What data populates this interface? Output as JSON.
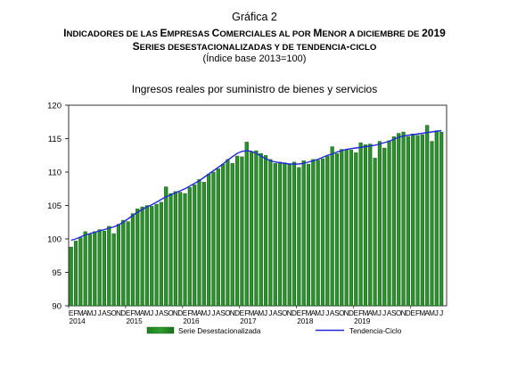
{
  "header": {
    "chart_number": "Gráfica 2",
    "title_parts": [
      {
        "t": "I",
        "s": false
      },
      {
        "t": "NDICADORES DE LAS ",
        "s": true
      },
      {
        "t": "E",
        "s": false
      },
      {
        "t": "MPRESAS ",
        "s": true
      },
      {
        "t": "C",
        "s": false
      },
      {
        "t": "OMERCIALES AL POR ",
        "s": true
      },
      {
        "t": "M",
        "s": false
      },
      {
        "t": "ENOR A DICIEMBRE DE ",
        "s": true
      },
      {
        "t": "2019",
        "s": false
      }
    ],
    "subtitle_parts": [
      {
        "t": "S",
        "s": false
      },
      {
        "t": "ERIES DESESTACIONALIZADAS Y DE TENDENCIA",
        "s": true
      },
      {
        "t": "-",
        "s": false
      },
      {
        "t": "CICLO",
        "s": true
      }
    ],
    "index_note": "(Índice base 2013=100)"
  },
  "chart_data": {
    "type": "bar",
    "title": "Ingresos reales por suministro de bienes y servicios",
    "xlabel": "",
    "ylabel": "",
    "ylim": [
      90,
      120
    ],
    "yticks": [
      90,
      95,
      100,
      105,
      110,
      115,
      120
    ],
    "month_labels": [
      "E",
      "F",
      "M",
      "A",
      "M",
      "J",
      "J",
      "A",
      "S",
      "O",
      "N",
      "D"
    ],
    "years": [
      "2014",
      "2015",
      "2016",
      "2017",
      "2018",
      "2019"
    ],
    "grid": false,
    "legend_position": "bottom",
    "bar_color": "#2e9e2e",
    "line_color": "#1f2bd6",
    "series": [
      {
        "name": "Serie Desestacionalizada",
        "type": "bar",
        "values": [
          98.8,
          99.7,
          100.2,
          101.1,
          100.7,
          101.1,
          101.4,
          101.2,
          101.9,
          100.8,
          102.2,
          102.8,
          102.6,
          103.8,
          104.5,
          104.8,
          105.0,
          104.9,
          105.2,
          105.5,
          107.8,
          106.8,
          107.1,
          107.0,
          106.8,
          107.7,
          108.1,
          108.9,
          108.5,
          109.7,
          110.0,
          110.5,
          111.2,
          111.9,
          111.3,
          112.4,
          112.3,
          114.5,
          113.0,
          113.2,
          112.8,
          112.5,
          111.9,
          111.3,
          111.5,
          111.4,
          111.1,
          111.5,
          110.7,
          111.7,
          111.2,
          111.9,
          111.8,
          112.0,
          112.4,
          113.8,
          112.8,
          113.4,
          113.3,
          113.3,
          112.9,
          114.4,
          114.1,
          114.2,
          112.1,
          114.6,
          113.6,
          114.7,
          115.3,
          115.8,
          116.0,
          115.3,
          115.7,
          115.5,
          115.6,
          117.0,
          114.6,
          116.2,
          116.0
        ]
      },
      {
        "name": "Tendencia-Ciclo",
        "type": "line",
        "values": [
          99.8,
          100.0,
          100.3,
          100.6,
          100.8,
          101.0,
          101.2,
          101.4,
          101.6,
          101.8,
          102.1,
          102.5,
          103.0,
          103.5,
          104.0,
          104.4,
          104.8,
          105.1,
          105.5,
          105.9,
          106.3,
          106.6,
          106.9,
          107.2,
          107.5,
          107.9,
          108.3,
          108.7,
          109.2,
          109.7,
          110.2,
          110.7,
          111.2,
          111.8,
          112.3,
          112.8,
          113.1,
          113.2,
          113.1,
          112.8,
          112.4,
          112.0,
          111.7,
          111.5,
          111.4,
          111.3,
          111.2,
          111.2,
          111.2,
          111.3,
          111.5,
          111.7,
          111.9,
          112.2,
          112.5,
          112.7,
          113.0,
          113.2,
          113.4,
          113.5,
          113.6,
          113.7,
          113.8,
          113.9,
          114.0,
          114.2,
          114.4,
          114.6,
          114.9,
          115.2,
          115.4,
          115.5,
          115.6,
          115.7,
          115.8,
          115.9,
          116.0,
          116.1,
          116.2
        ]
      }
    ]
  }
}
